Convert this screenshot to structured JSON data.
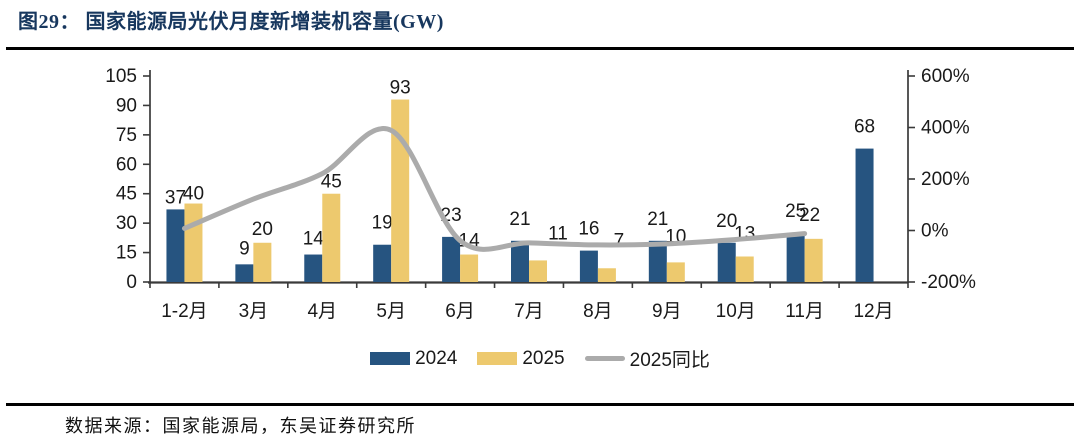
{
  "page": {
    "title": "图29： 国家能源局光伏月度新增装机容量(GW)",
    "source": "数据来源：国家能源局，东吴证券研究所"
  },
  "colors": {
    "title_navy": "#17375E",
    "bar_2024": "#265480",
    "bar_2025": "#EDC96E",
    "line_gray": "#ABABAB",
    "axis_line": "#3A3A3A",
    "label_text": "#1A1A1A",
    "rule_black": "#000000"
  },
  "chart_data": {
    "type": "bar",
    "subtype": "grouped bars with right-axis smoothed line",
    "title": "国家能源局光伏月度新增装机容量(GW)",
    "categories": [
      "1-2月",
      "3月",
      "4月",
      "5月",
      "6月",
      "7月",
      "8月",
      "9月",
      "10月",
      "11月",
      "12月"
    ],
    "series": [
      {
        "name": "2024",
        "type": "bar",
        "axis": "left",
        "color_key": "bar_2024",
        "values": [
          37,
          9,
          14,
          19,
          23,
          21,
          16,
          21,
          20,
          25,
          68
        ]
      },
      {
        "name": "2025",
        "type": "bar",
        "axis": "left",
        "color_key": "bar_2025",
        "values": [
          40,
          20,
          45,
          93,
          14,
          11,
          7,
          10,
          13,
          22,
          null
        ]
      },
      {
        "name": "2025同比",
        "type": "line",
        "axis": "right",
        "color_key": "line_gray",
        "values_pct": [
          8,
          122,
          221,
          389,
          -39,
          -48,
          -56,
          -52,
          -35,
          -12,
          null
        ]
      }
    ],
    "left_axis": {
      "min": 0,
      "max": 105,
      "step": 15,
      "ticks": [
        "0",
        "15",
        "30",
        "45",
        "60",
        "75",
        "90",
        "105"
      ]
    },
    "right_axis": {
      "min": -200,
      "max": 600,
      "step": 200,
      "ticks": [
        "-200%",
        "0%",
        "200%",
        "400%",
        "600%"
      ]
    },
    "grid": false,
    "legend_position": "bottom",
    "legend": [
      "2024",
      "2025",
      "2025同比"
    ]
  }
}
